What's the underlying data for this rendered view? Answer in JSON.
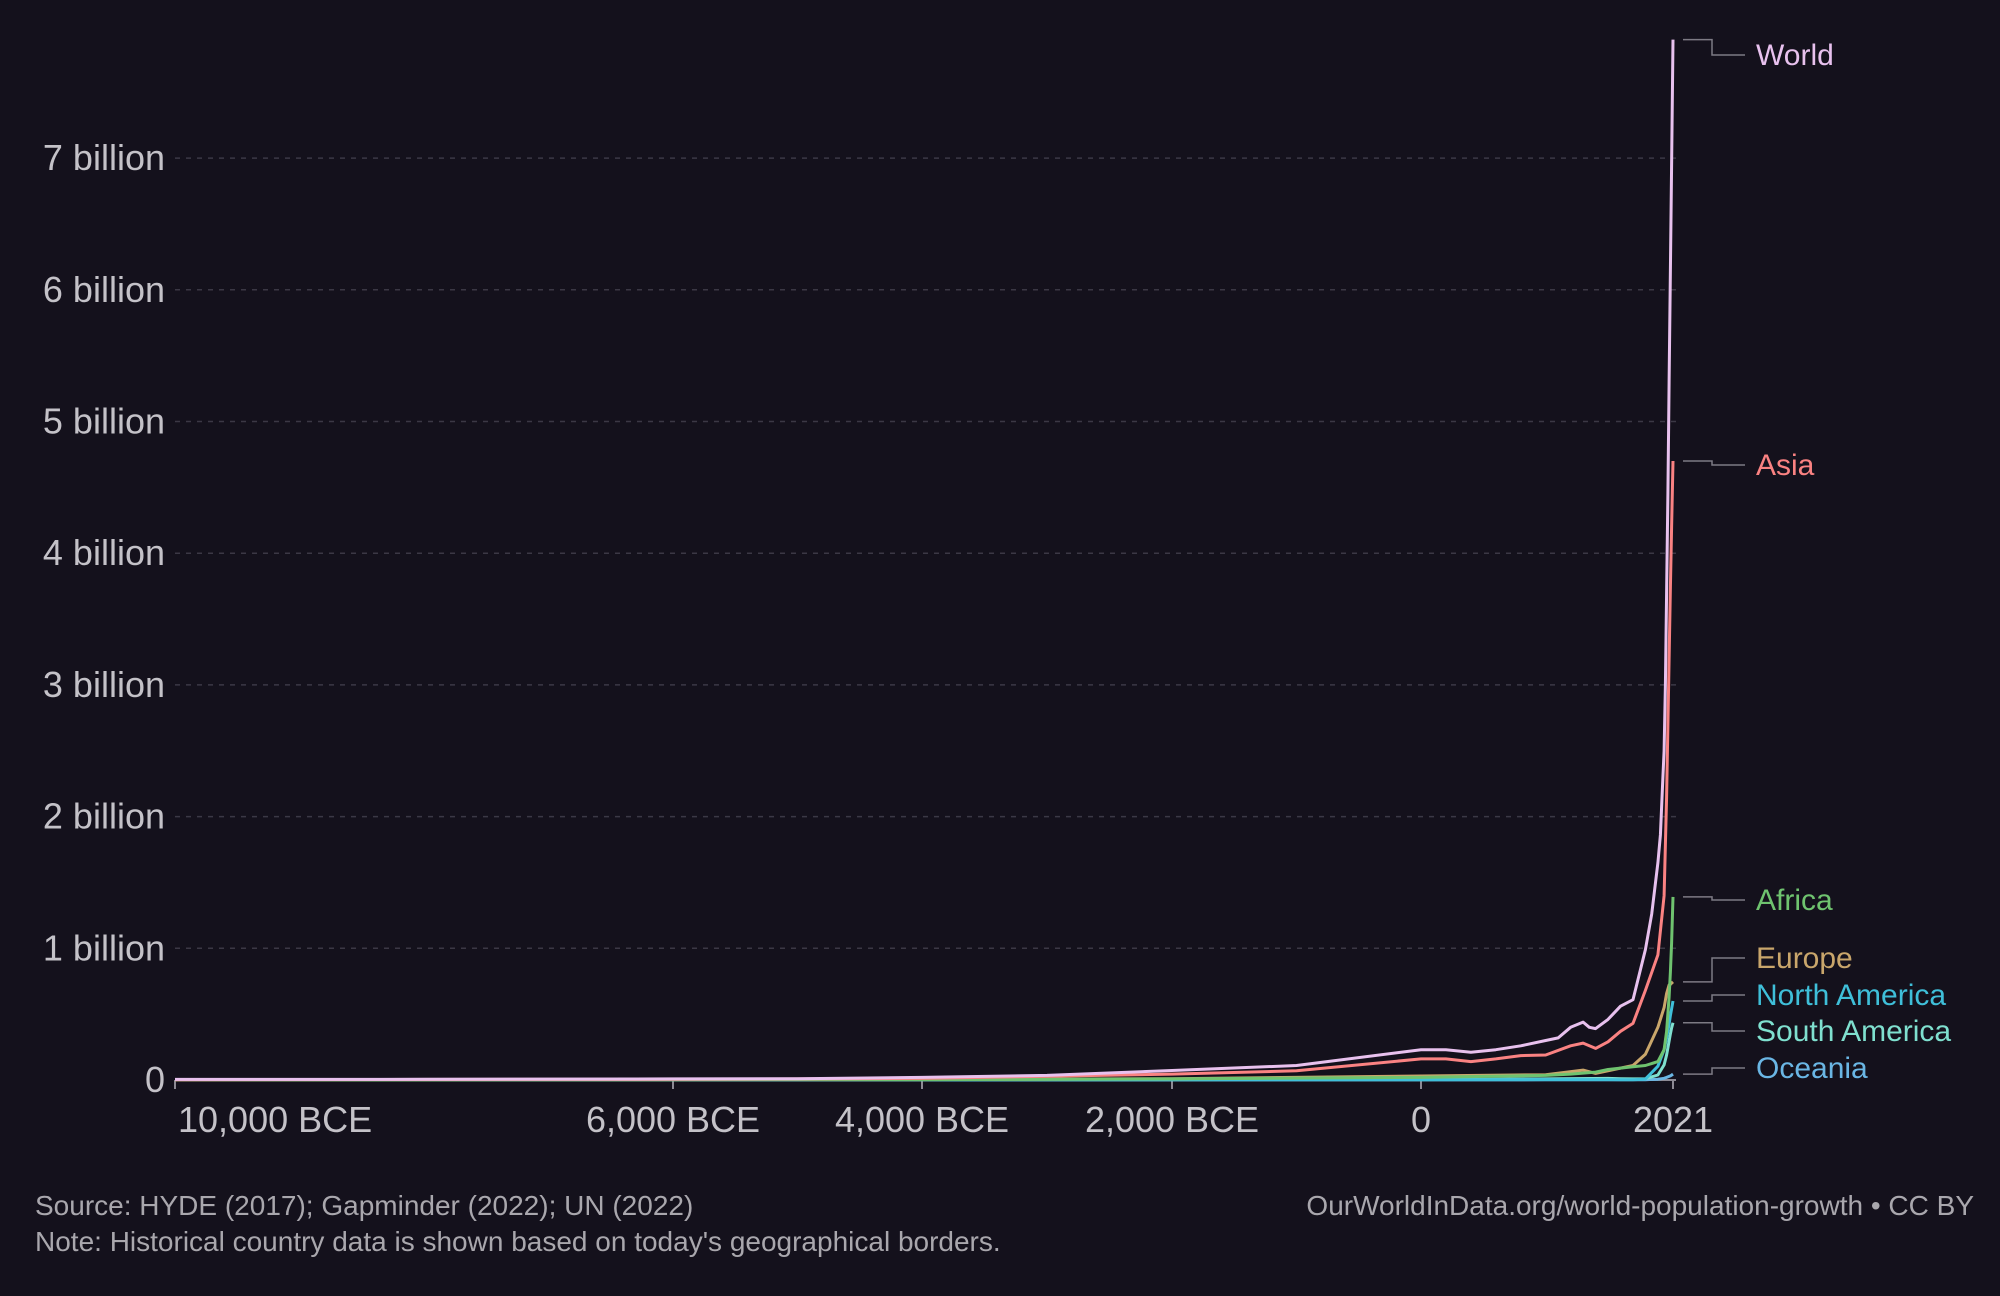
{
  "chart_data": {
    "type": "line",
    "title": "",
    "xlabel": "",
    "ylabel": "",
    "xlim": [
      -10000,
      2021
    ],
    "ylim": [
      0,
      7900000000
    ],
    "grid": true,
    "legend_placement": "right, inline at line ends",
    "y_ticks": [
      {
        "value": 0,
        "label": "0"
      },
      {
        "value": 1000000000,
        "label": "1 billion"
      },
      {
        "value": 2000000000,
        "label": "2 billion"
      },
      {
        "value": 3000000000,
        "label": "3 billion"
      },
      {
        "value": 4000000000,
        "label": "4 billion"
      },
      {
        "value": 5000000000,
        "label": "5 billion"
      },
      {
        "value": 6000000000,
        "label": "6 billion"
      },
      {
        "value": 7000000000,
        "label": "7 billion"
      }
    ],
    "x_ticks": [
      {
        "value": -10000,
        "label": "10,000 BCE"
      },
      {
        "value": -6000,
        "label": "6,000 BCE"
      },
      {
        "value": -4000,
        "label": "4,000 BCE"
      },
      {
        "value": -2000,
        "label": "2,000 BCE"
      },
      {
        "value": 0,
        "label": "0"
      },
      {
        "value": 2021,
        "label": "2021"
      }
    ],
    "series": [
      {
        "name": "World",
        "color": "#e8c1ee",
        "x": [
          -10000,
          -8000,
          -6000,
          -5000,
          -4000,
          -3000,
          -2000,
          -1000,
          0,
          200,
          400,
          600,
          800,
          1000,
          1100,
          1200,
          1300,
          1350,
          1400,
          1500,
          1600,
          1700,
          1800,
          1850,
          1900,
          1920,
          1940,
          1950,
          1960,
          1970,
          1980,
          1990,
          2000,
          2010,
          2021
        ],
        "y": [
          4400000,
          5000000,
          8000000,
          10000000,
          20000000,
          35000000,
          72000000,
          110000000,
          230000000,
          230000000,
          210000000,
          230000000,
          260000000,
          300000000,
          320000000,
          400000000,
          440000000,
          400000000,
          390000000,
          460000000,
          560000000,
          610000000,
          990000000,
          1260000000,
          1650000000,
          1860000000,
          2300000000,
          2500000000,
          3000000000,
          3700000000,
          4450000000,
          5300000000,
          6150000000,
          6950000000,
          7900000000
        ]
      },
      {
        "name": "Asia",
        "color": "#fa8282",
        "x": [
          -10000,
          -6000,
          -4000,
          -2000,
          -1000,
          0,
          200,
          400,
          600,
          800,
          1000,
          1200,
          1300,
          1400,
          1500,
          1600,
          1700,
          1800,
          1900,
          1950,
          1970,
          1990,
          2000,
          2010,
          2021
        ],
        "y": [
          2500000,
          5000000,
          12000000,
          45000000,
          70000000,
          160000000,
          160000000,
          140000000,
          160000000,
          185000000,
          190000000,
          260000000,
          280000000,
          240000000,
          290000000,
          370000000,
          430000000,
          680000000,
          950000000,
          1400000000,
          2150000000,
          3200000000,
          3740000000,
          4200000000,
          4700000000
        ]
      },
      {
        "name": "Africa",
        "color": "#6fc36f",
        "x": [
          -10000,
          -4000,
          -2000,
          0,
          1000,
          1200,
          1400,
          1500,
          1600,
          1700,
          1800,
          1900,
          1950,
          1970,
          1990,
          2000,
          2010,
          2021
        ],
        "y": [
          500000,
          3000000,
          8000000,
          20000000,
          35000000,
          45000000,
          60000000,
          80000000,
          90000000,
          100000000,
          110000000,
          140000000,
          230000000,
          370000000,
          630000000,
          820000000,
          1040000000,
          1390000000
        ]
      },
      {
        "name": "Europe",
        "color": "#c9a66b",
        "x": [
          -10000,
          -4000,
          -2000,
          0,
          1000,
          1300,
          1400,
          1500,
          1600,
          1700,
          1800,
          1900,
          1950,
          1970,
          1990,
          2000,
          2010,
          2021
        ],
        "y": [
          500000,
          3000000,
          10000000,
          30000000,
          40000000,
          75000000,
          50000000,
          70000000,
          90000000,
          110000000,
          195000000,
          400000000,
          550000000,
          657000000,
          722000000,
          726000000,
          736000000,
          745000000
        ]
      },
      {
        "name": "North America",
        "color": "#3fbfd9",
        "x": [
          -10000,
          0,
          1000,
          1500,
          1600,
          1700,
          1800,
          1900,
          1950,
          1970,
          1990,
          2000,
          2010,
          2021
        ],
        "y": [
          100000,
          2000000,
          3000000,
          3000000,
          2000000,
          2000000,
          7000000,
          105000000,
          230000000,
          320000000,
          425000000,
          490000000,
          540000000,
          600000000
        ]
      },
      {
        "name": "South America",
        "color": "#7fe0cf",
        "x": [
          -10000,
          0,
          1000,
          1500,
          1600,
          1700,
          1800,
          1900,
          1950,
          1970,
          1990,
          2000,
          2010,
          2021
        ],
        "y": [
          100000,
          3000000,
          8000000,
          12000000,
          10000000,
          8000000,
          9000000,
          38000000,
          115000000,
          190000000,
          295000000,
          350000000,
          395000000,
          435000000
        ]
      },
      {
        "name": "Oceania",
        "color": "#6ab6e4",
        "x": [
          -10000,
          0,
          1000,
          1500,
          1800,
          1900,
          1950,
          1970,
          1990,
          2000,
          2010,
          2021
        ],
        "y": [
          100000,
          1000000,
          1500000,
          2000000,
          2000000,
          6000000,
          13000000,
          20000000,
          27000000,
          31000000,
          37000000,
          45000000
        ]
      }
    ]
  },
  "footer": {
    "source": "Source: HYDE (2017); Gapminder (2022); UN (2022)",
    "note": "Note: Historical country data is shown based on today's geographical borders.",
    "credit": "OurWorldInData.org/world-population-growth • CC BY"
  }
}
